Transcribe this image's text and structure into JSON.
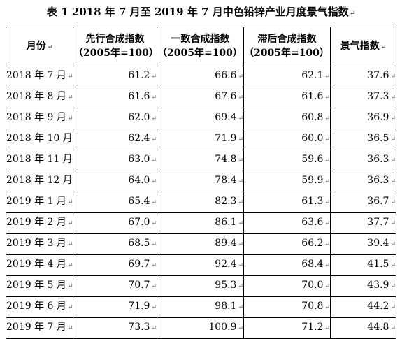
{
  "title": "表 1  2018 年 7 月至 2019 年 7 月中色铅锌产业月度景气指数",
  "headers": [
    {
      "line1": "月份",
      "line2": ""
    },
    {
      "line1": "先行合成指数",
      "line2": "（2005年=100）"
    },
    {
      "line1": "一致合成指数",
      "line2": "（2005年=100）"
    },
    {
      "line1": "滞后合成指数",
      "line2": "（2005年=100）"
    },
    {
      "line1": "景气指数",
      "line2": ""
    }
  ],
  "rows": [
    {
      "month": "2018 年 7 月",
      "leading": "61.2",
      "coincident": "66.6",
      "lagging": "62.1",
      "prosperity": "37.6"
    },
    {
      "month": "2018 年 8 月",
      "leading": "61.6",
      "coincident": "67.6",
      "lagging": "61.6",
      "prosperity": "37.3"
    },
    {
      "month": "2018 年 9 月",
      "leading": "62.0",
      "coincident": "69.4",
      "lagging": "60.8",
      "prosperity": "36.9"
    },
    {
      "month": "2018 年 10 月",
      "leading": "62.4",
      "coincident": "71.9",
      "lagging": "60.0",
      "prosperity": "36.5"
    },
    {
      "month": "2018 年 11 月",
      "leading": "63.0",
      "coincident": "74.8",
      "lagging": "59.6",
      "prosperity": "36.3"
    },
    {
      "month": "2018 年 12 月",
      "leading": "64.0",
      "coincident": "78.4",
      "lagging": "59.9",
      "prosperity": "36.3"
    },
    {
      "month": "2019 年 1 月",
      "leading": "65.4",
      "coincident": "82.3",
      "lagging": "61.3",
      "prosperity": "36.7"
    },
    {
      "month": "2019 年 2 月",
      "leading": "67.0",
      "coincident": "86.1",
      "lagging": "63.6",
      "prosperity": "37.7"
    },
    {
      "month": "2019 年 3 月",
      "leading": "68.5",
      "coincident": "89.4",
      "lagging": "66.2",
      "prosperity": "39.4"
    },
    {
      "month": "2019 年 4 月",
      "leading": "69.7",
      "coincident": "92.4",
      "lagging": "68.4",
      "prosperity": "41.5"
    },
    {
      "month": "2019 年 5 月",
      "leading": "70.7",
      "coincident": "95.3",
      "lagging": "70.0",
      "prosperity": "43.9"
    },
    {
      "month": "2019 年 6 月",
      "leading": "71.9",
      "coincident": "98.1",
      "lagging": "70.8",
      "prosperity": "44.2"
    },
    {
      "month": "2019 年 7 月",
      "leading": "73.3",
      "coincident": "100.9",
      "lagging": "71.2",
      "prosperity": "44.8"
    }
  ],
  "paragraph_mark": "↵"
}
